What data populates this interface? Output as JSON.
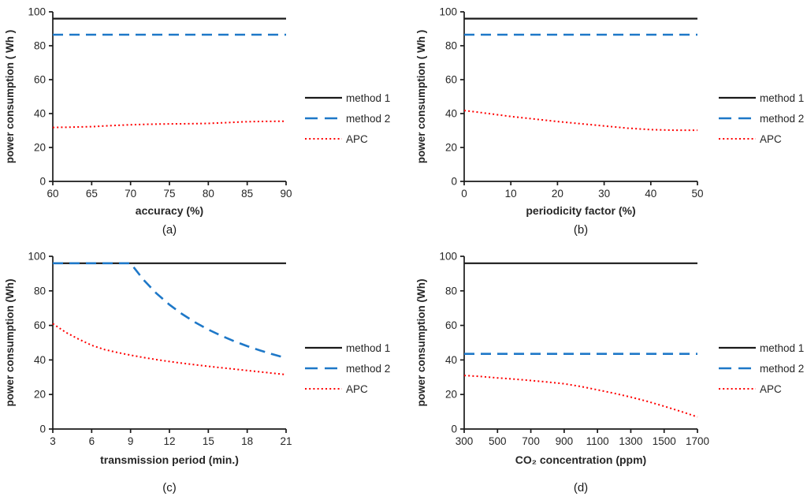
{
  "figure": {
    "background": "#ffffff",
    "axis_color": "#1a1a1a",
    "text_color": "#262626",
    "caption_font": "serif"
  },
  "chart_data": [
    {
      "type": "line",
      "caption": "(a)",
      "xlabel": "accuracy  (%)",
      "ylabel": "power consumption ( Wh )",
      "xlim": [
        60,
        90
      ],
      "ylim": [
        0,
        100
      ],
      "xticks": [
        60,
        65,
        70,
        75,
        80,
        85,
        90
      ],
      "yticks": [
        0,
        20,
        40,
        60,
        80,
        100
      ],
      "grid": false,
      "legend_position": "right",
      "series": [
        {
          "name": "method 1",
          "color": "#1a1a1a",
          "style": "solid",
          "points": [
            [
              60,
              96
            ],
            [
              90,
              96
            ]
          ]
        },
        {
          "name": "method 2",
          "color": "#1e78c8",
          "style": "dashed",
          "points": [
            [
              60,
              86.5
            ],
            [
              90,
              86.5
            ]
          ]
        },
        {
          "name": "APC",
          "color": "#ff0000",
          "style": "dotted",
          "points": [
            [
              60,
              31.8
            ],
            [
              62.5,
              32.0
            ],
            [
              65,
              32.3
            ],
            [
              67.5,
              32.9
            ],
            [
              70,
              33.4
            ],
            [
              72.5,
              33.7
            ],
            [
              75,
              33.9
            ],
            [
              77.5,
              34.0
            ],
            [
              80,
              34.2
            ],
            [
              82.5,
              34.7
            ],
            [
              85,
              35.2
            ],
            [
              87.5,
              35.4
            ],
            [
              90,
              35.5
            ]
          ]
        }
      ]
    },
    {
      "type": "line",
      "caption": "(b)",
      "xlabel": "periodicity factor  (%)",
      "ylabel": "power consumption ( Wh )",
      "xlim": [
        0,
        50
      ],
      "ylim": [
        0,
        100
      ],
      "xticks": [
        0,
        10,
        20,
        30,
        40,
        50
      ],
      "yticks": [
        0,
        20,
        40,
        60,
        80,
        100
      ],
      "grid": false,
      "legend_position": "right",
      "series": [
        {
          "name": "method 1",
          "color": "#1a1a1a",
          "style": "solid",
          "points": [
            [
              0,
              96
            ],
            [
              50,
              96
            ]
          ]
        },
        {
          "name": "method 2",
          "color": "#1e78c8",
          "style": "dashed",
          "points": [
            [
              0,
              86.5
            ],
            [
              50,
              86.5
            ]
          ]
        },
        {
          "name": "APC",
          "color": "#ff0000",
          "style": "dotted",
          "points": [
            [
              0,
              41.8
            ],
            [
              5,
              40.1
            ],
            [
              10,
              38.3
            ],
            [
              15,
              36.8
            ],
            [
              20,
              35.3
            ],
            [
              25,
              34.0
            ],
            [
              30,
              32.7
            ],
            [
              35,
              31.4
            ],
            [
              40,
              30.5
            ],
            [
              45,
              30.2
            ],
            [
              50,
              30.2
            ]
          ]
        }
      ]
    },
    {
      "type": "line",
      "caption": "(c)",
      "xlabel": "transmission period (min.)",
      "ylabel": "power consumption (Wh)",
      "xlim": [
        3,
        21
      ],
      "ylim": [
        0,
        100
      ],
      "xticks": [
        3,
        6,
        9,
        12,
        15,
        18,
        21
      ],
      "yticks": [
        0,
        20,
        40,
        60,
        80,
        100
      ],
      "grid": false,
      "legend_position": "right",
      "series": [
        {
          "name": "method 1",
          "color": "#1a1a1a",
          "style": "solid",
          "points": [
            [
              3,
              96
            ],
            [
              21,
              96
            ]
          ]
        },
        {
          "name": "method 2",
          "color": "#1e78c8",
          "style": "dashed",
          "points": [
            [
              3,
              96
            ],
            [
              9,
              96
            ],
            [
              10,
              86.4
            ],
            [
              11,
              78.5
            ],
            [
              12,
              72
            ],
            [
              13,
              66.5
            ],
            [
              14,
              61.7
            ],
            [
              15,
              57.6
            ],
            [
              16,
              54
            ],
            [
              17,
              50.8
            ],
            [
              18,
              48
            ],
            [
              19,
              45.5
            ],
            [
              20,
              43.2
            ],
            [
              21,
              41.1
            ]
          ]
        },
        {
          "name": "APC",
          "color": "#ff0000",
          "style": "dotted",
          "points": [
            [
              3,
              61
            ],
            [
              4,
              56
            ],
            [
              5,
              52
            ],
            [
              6,
              48.5
            ],
            [
              7,
              46
            ],
            [
              8,
              44.3
            ],
            [
              9,
              42.8
            ],
            [
              10,
              41.4
            ],
            [
              11,
              40.2
            ],
            [
              12,
              39.1
            ],
            [
              13,
              38.1
            ],
            [
              14,
              37.2
            ],
            [
              15,
              36.3
            ],
            [
              16,
              35.5
            ],
            [
              17,
              34.7
            ],
            [
              18,
              33.9
            ],
            [
              19,
              33.1
            ],
            [
              20,
              32.3
            ],
            [
              21,
              31.5
            ]
          ]
        }
      ]
    },
    {
      "type": "line",
      "caption": "(d)",
      "xlabel": "CO₂ concentration (ppm)",
      "ylabel": "power consumption (Wh)",
      "xlim": [
        300,
        1700
      ],
      "ylim": [
        0,
        100
      ],
      "xticks": [
        300,
        500,
        700,
        900,
        1100,
        1300,
        1500,
        1700
      ],
      "yticks": [
        0,
        20,
        40,
        60,
        80,
        100
      ],
      "grid": false,
      "legend_position": "right",
      "series": [
        {
          "name": "method 1",
          "color": "#1a1a1a",
          "style": "solid",
          "points": [
            [
              300,
              96
            ],
            [
              1700,
              96
            ]
          ]
        },
        {
          "name": "method 2",
          "color": "#1e78c8",
          "style": "dashed",
          "points": [
            [
              300,
              43.5
            ],
            [
              1700,
              43.5
            ]
          ]
        },
        {
          "name": "APC",
          "color": "#ff0000",
          "style": "dotted",
          "points": [
            [
              300,
              31
            ],
            [
              400,
              30.4
            ],
            [
              500,
              29.6
            ],
            [
              600,
              28.9
            ],
            [
              700,
              28.1
            ],
            [
              800,
              27.2
            ],
            [
              900,
              26.2
            ],
            [
              1000,
              24.6
            ],
            [
              1100,
              22.7
            ],
            [
              1200,
              20.7
            ],
            [
              1300,
              18.5
            ],
            [
              1400,
              16
            ],
            [
              1500,
              13.2
            ],
            [
              1600,
              10.2
            ],
            [
              1700,
              7
            ]
          ]
        }
      ]
    }
  ]
}
